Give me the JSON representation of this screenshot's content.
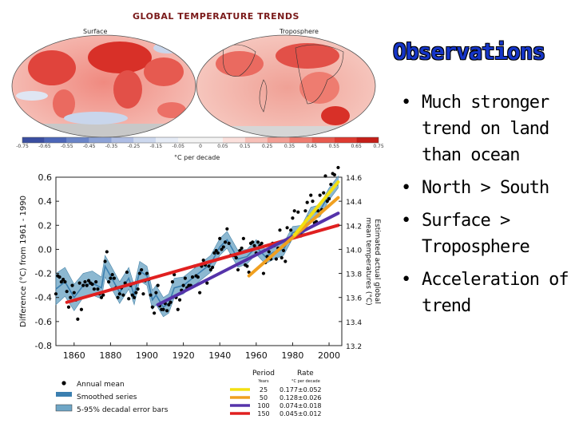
{
  "figure": {
    "title": "GLOBAL TEMPERATURE TRENDS",
    "maps": [
      {
        "label": "Surface"
      },
      {
        "label": "Troposphere"
      }
    ],
    "colorbar": {
      "ticks": [
        "-0.75",
        "-0.65",
        "-0.55",
        "-0.45",
        "-0.35",
        "-0.25",
        "-0.15",
        "-0.05",
        "0",
        "0.05",
        "0.15",
        "0.25",
        "0.35",
        "0.45",
        "0.55",
        "0.65",
        "0.75"
      ],
      "unit": "°C per decade"
    }
  },
  "slide": {
    "heading": "Observations",
    "bullets": [
      "Much stronger trend on land than ocean",
      "North > South",
      "Surface > Troposphere",
      "Acceleration of trend"
    ]
  },
  "colors": {
    "heading": "#1535c8",
    "band": "#6fa6c6",
    "smooth": "#3b7fb0",
    "trend_150": "#e02020",
    "trend_100": "#5533aa",
    "trend_50": "#f0a020",
    "trend_25": "#f4e010"
  },
  "chart_data": {
    "type": "line",
    "title": "",
    "xlabel": "",
    "ylabel": "Difference (°C) from 1961 - 1990",
    "y2label": "Estimated actual global mean temperatures (°C)",
    "xlim": [
      1850,
      2007
    ],
    "ylim": [
      -0.8,
      0.6
    ],
    "y2lim": [
      13.2,
      14.6
    ],
    "xticks": [
      "1860",
      "1880",
      "1900",
      "1920",
      "1940",
      "1960",
      "1980",
      "2000"
    ],
    "yticks": [
      "0.6",
      "0.4",
      "0.2",
      "0.0",
      "-0.2",
      "-0.4",
      "-0.6",
      "-0.8"
    ],
    "y2ticks": [
      "14.6",
      "14.4",
      "14.2",
      "14.0",
      "13.8",
      "13.6",
      "13.4",
      "13.2"
    ],
    "annual_mean": {
      "name": "Annual mean",
      "x": [
        1850,
        1851,
        1852,
        1853,
        1854,
        1855,
        1856,
        1857,
        1858,
        1859,
        1860,
        1861,
        1862,
        1863,
        1864,
        1865,
        1866,
        1867,
        1868,
        1869,
        1870,
        1871,
        1872,
        1873,
        1874,
        1875,
        1876,
        1877,
        1878,
        1879,
        1880,
        1881,
        1882,
        1883,
        1884,
        1885,
        1886,
        1887,
        1888,
        1889,
        1890,
        1891,
        1892,
        1893,
        1894,
        1895,
        1896,
        1897,
        1898,
        1899,
        1900,
        1901,
        1902,
        1903,
        1904,
        1905,
        1906,
        1907,
        1908,
        1909,
        1910,
        1911,
        1912,
        1913,
        1914,
        1915,
        1916,
        1917,
        1918,
        1919,
        1920,
        1921,
        1922,
        1923,
        1924,
        1925,
        1926,
        1927,
        1928,
        1929,
        1930,
        1931,
        1932,
        1933,
        1934,
        1935,
        1936,
        1937,
        1938,
        1939,
        1940,
        1941,
        1942,
        1943,
        1944,
        1945,
        1946,
        1947,
        1948,
        1949,
        1950,
        1951,
        1952,
        1953,
        1954,
        1955,
        1956,
        1957,
        1958,
        1959,
        1960,
        1961,
        1962,
        1963,
        1964,
        1965,
        1966,
        1967,
        1968,
        1969,
        1970,
        1971,
        1972,
        1973,
        1974,
        1975,
        1976,
        1977,
        1978,
        1979,
        1980,
        1981,
        1982,
        1983,
        1984,
        1985,
        1986,
        1987,
        1988,
        1989,
        1990,
        1991,
        1992,
        1993,
        1994,
        1995,
        1996,
        1997,
        1998,
        1999,
        2000,
        2001,
        2002,
        2003,
        2004,
        2005
      ],
      "y": [
        -0.37,
        -0.22,
        -0.23,
        -0.27,
        -0.25,
        -0.27,
        -0.35,
        -0.48,
        -0.4,
        -0.3,
        -0.36,
        -0.42,
        -0.58,
        -0.28,
        -0.5,
        -0.3,
        -0.27,
        -0.3,
        -0.26,
        -0.28,
        -0.29,
        -0.33,
        -0.27,
        -0.33,
        -0.37,
        -0.4,
        -0.38,
        -0.1,
        -0.02,
        -0.27,
        -0.24,
        -0.21,
        -0.24,
        -0.32,
        -0.4,
        -0.37,
        -0.32,
        -0.38,
        -0.28,
        -0.19,
        -0.41,
        -0.3,
        -0.38,
        -0.4,
        -0.36,
        -0.33,
        -0.2,
        -0.17,
        -0.37,
        -0.26,
        -0.2,
        -0.25,
        -0.38,
        -0.48,
        -0.53,
        -0.36,
        -0.3,
        -0.47,
        -0.5,
        -0.5,
        -0.45,
        -0.51,
        -0.46,
        -0.44,
        -0.27,
        -0.21,
        -0.4,
        -0.5,
        -0.42,
        -0.34,
        -0.3,
        -0.24,
        -0.32,
        -0.3,
        -0.3,
        -0.23,
        -0.14,
        -0.22,
        -0.23,
        -0.36,
        -0.14,
        -0.09,
        -0.13,
        -0.28,
        -0.14,
        -0.17,
        -0.15,
        -0.03,
        -0.01,
        -0.03,
        0.09,
        0.0,
        0.02,
        0.06,
        0.17,
        0.05,
        -0.05,
        -0.05,
        -0.05,
        -0.07,
        -0.17,
        -0.01,
        0.01,
        0.09,
        -0.13,
        -0.14,
        -0.19,
        0.05,
        0.06,
        0.03,
        -0.03,
        0.06,
        0.03,
        0.05,
        -0.2,
        -0.11,
        -0.06,
        -0.02,
        -0.08,
        0.05,
        0.03,
        -0.08,
        0.01,
        0.16,
        -0.07,
        -0.01,
        -0.1,
        0.18,
        0.07,
        0.16,
        0.26,
        0.32,
        0.14,
        0.31,
        0.16,
        0.12,
        0.18,
        0.32,
        0.39,
        0.27,
        0.45,
        0.4,
        0.22,
        0.23,
        0.32,
        0.45,
        0.33,
        0.47,
        0.61,
        0.4,
        0.42,
        0.54,
        0.63,
        0.62,
        0.54,
        0.68
      ]
    },
    "smoothed": {
      "name": "Smoothed series",
      "x": [
        1850,
        1855,
        1860,
        1865,
        1870,
        1875,
        1877,
        1880,
        1885,
        1890,
        1893,
        1896,
        1900,
        1903,
        1905,
        1909,
        1912,
        1915,
        1920,
        1925,
        1930,
        1935,
        1940,
        1944,
        1950,
        1955,
        1960,
        1965,
        1970,
        1975,
        1980,
        1985,
        1990,
        1995,
        2000,
        2005
      ],
      "y": [
        -0.33,
        -0.27,
        -0.4,
        -0.3,
        -0.28,
        -0.32,
        -0.14,
        -0.22,
        -0.36,
        -0.24,
        -0.38,
        -0.18,
        -0.22,
        -0.42,
        -0.38,
        -0.48,
        -0.45,
        -0.32,
        -0.3,
        -0.24,
        -0.18,
        -0.12,
        0.02,
        0.08,
        -0.08,
        -0.06,
        0.02,
        -0.06,
        -0.02,
        0.0,
        0.14,
        0.15,
        0.3,
        0.32,
        0.46,
        0.56
      ]
    },
    "error_band": {
      "name": "5-95% decadal error bars",
      "halfwidth": [
        0.13,
        0.12,
        0.11,
        0.1,
        0.1,
        0.09,
        0.09,
        0.09,
        0.09,
        0.09,
        0.08,
        0.08,
        0.08,
        0.08,
        0.08,
        0.08,
        0.08,
        0.08,
        0.07,
        0.07,
        0.07,
        0.07,
        0.07,
        0.07,
        0.07,
        0.06,
        0.06,
        0.06,
        0.06,
        0.05,
        0.05,
        0.05,
        0.05,
        0.05,
        0.05,
        0.05
      ]
    },
    "trends": [
      {
        "period": "25",
        "rate": "0.177±0.052",
        "x": [
          1981,
          2005
        ],
        "y": [
          0.12,
          0.56
        ],
        "color": "#f4e010"
      },
      {
        "period": "50",
        "rate": "0.128±0.026",
        "x": [
          1956,
          2005
        ],
        "y": [
          -0.22,
          0.43
        ],
        "color": "#f0a020"
      },
      {
        "period": "100",
        "rate": "0.074±0.018",
        "x": [
          1906,
          2005
        ],
        "y": [
          -0.46,
          0.3
        ],
        "color": "#5533aa"
      },
      {
        "period": "150",
        "rate": "0.045±0.012",
        "x": [
          1856,
          2005
        ],
        "y": [
          -0.44,
          0.2
        ],
        "color": "#e02020"
      }
    ],
    "legend": {
      "items": [
        "Annual mean",
        "Smoothed series",
        "5-95% decadal error bars"
      ],
      "period_header": "Period",
      "rate_header": "Rate",
      "years_label": "Years",
      "rate_unit": "°C per decade"
    }
  }
}
